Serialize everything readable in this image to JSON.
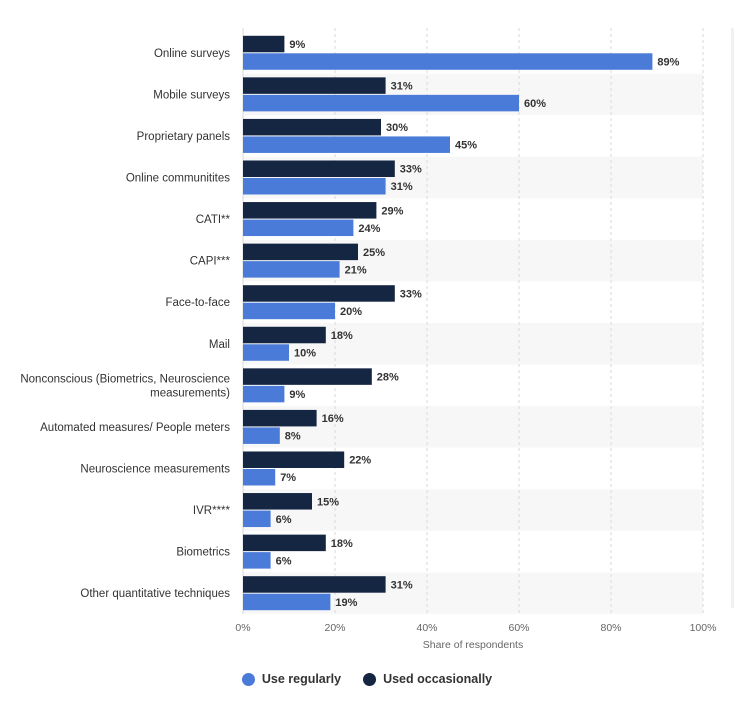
{
  "chart_data": {
    "type": "bar",
    "orientation": "horizontal",
    "categories": [
      "Online surveys",
      "Mobile surveys",
      "Proprietary panels",
      "Online communitites",
      "CATI**",
      "CAPI***",
      "Face-to-face",
      "Mail",
      "Nonconscious (Biometrics, Neuroscience measurements)",
      "Automated measures/ People meters",
      "Neuroscience measurements",
      "IVR****",
      "Biometrics",
      "Other quantitative techniques"
    ],
    "series": [
      {
        "name": "Used occasionally",
        "color": "#152642",
        "values": [
          9,
          31,
          30,
          33,
          29,
          25,
          33,
          18,
          28,
          16,
          22,
          15,
          18,
          31
        ]
      },
      {
        "name": "Use regularly",
        "color": "#4a7bd8",
        "values": [
          89,
          60,
          45,
          31,
          24,
          21,
          20,
          10,
          9,
          8,
          7,
          6,
          6,
          19
        ]
      }
    ],
    "value_suffix": "%",
    "xlabel": "Share of respondents",
    "xlim": [
      0,
      100
    ],
    "xticks": [
      "0%",
      "20%",
      "40%",
      "60%",
      "80%",
      "100%"
    ],
    "grid": true,
    "legend_position": "bottom"
  },
  "legend": {
    "items": [
      {
        "label": "Use regularly",
        "color": "#4a7bd8"
      },
      {
        "label": "Used occasionally",
        "color": "#152642"
      }
    ]
  }
}
